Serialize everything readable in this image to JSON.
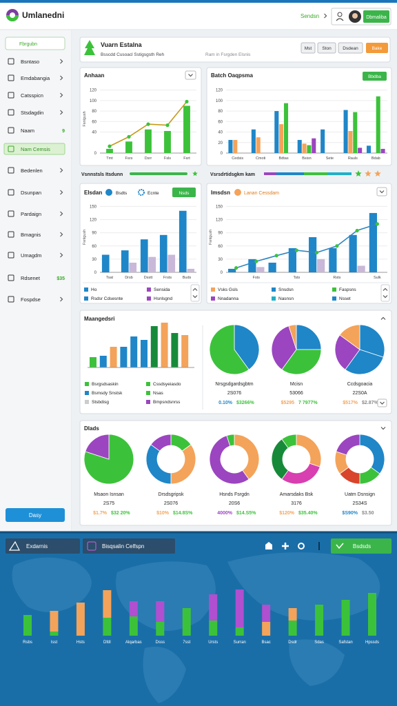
{
  "header": {
    "title": "Umlanedni",
    "link": "Sendsn",
    "user": "Dbmaliba"
  },
  "sidebar": {
    "search": "Fbrgubn",
    "items": [
      {
        "label": "Bsntaso"
      },
      {
        "label": "Emdabangia"
      },
      {
        "label": "Catsspicn"
      },
      {
        "label": "Stsdagdin"
      },
      {
        "label": "Naam",
        "badge": "9"
      },
      {
        "label": "Nam Cemsis",
        "active": true
      },
      {
        "label": "Bedenlen"
      },
      {
        "label": "Dsunpan"
      },
      {
        "label": "Pardaign"
      },
      {
        "label": "Bmagnis"
      },
      {
        "label": "Umagdm"
      },
      {
        "label": "Rdsenet",
        "badge": "$35"
      },
      {
        "label": "Fospdse"
      }
    ],
    "button": "Dasy"
  },
  "banner": {
    "title": "Vuarn Estalna",
    "subtitle": "Bsscdd Cusoacl Sstigsgsth Reh",
    "note": "Ram in Fsrgden Elsnis",
    "buttons": [
      "Mst",
      "Ston",
      "Dsdean",
      "Bake"
    ]
  },
  "panels": [
    {
      "title": "Anhaan",
      "chart": {
        "type": "bar",
        "ylabel": "Fsnlgush",
        "categories": [
          "Tmt",
          "Fsrs",
          "Dsrr",
          "Fsls",
          "Fsrt"
        ],
        "ylim": [
          0,
          130
        ],
        "yticks": [
          0,
          40,
          60,
          80,
          100,
          120
        ],
        "series": [
          {
            "color": "#3cc23a",
            "values": [
              8,
              22,
              45,
              42,
              90
            ]
          },
          {
            "kind": "line",
            "color": "#c49a1a",
            "marker": "#3cc23a",
            "values": [
              13,
              31,
              55,
              53,
              98
            ]
          }
        ]
      }
    },
    {
      "title": "Batch Oaqpsma",
      "button": "Bbdba",
      "chart": {
        "type": "bar",
        "categories": [
          "Cedsis",
          "Cmoti",
          "Bdtas",
          "Bsisn",
          "Sete",
          "Rauls",
          "Bdab"
        ],
        "ylim": [
          0,
          130
        ],
        "yticks": [
          0,
          20,
          40,
          60,
          80,
          100,
          120
        ],
        "series": [
          {
            "color": "#1f86c8",
            "values": [
              25,
              45,
              80,
              25,
              45,
              82,
              14
            ]
          },
          {
            "color": "#f4a35a",
            "values": [
              25,
              30,
              55,
              18,
              0,
              42,
              0
            ]
          },
          {
            "color": "#3cc23a",
            "values": [
              0,
              0,
              95,
              15,
              0,
              78,
              108
            ]
          },
          {
            "color": "#9b45c0",
            "values": [
              0,
              0,
              0,
              28,
              0,
              10,
              8
            ]
          }
        ]
      }
    },
    {
      "title": "Elsdan",
      "chips": [
        "Bsdts",
        "Ecnte"
      ],
      "button": "Nsds",
      "chart": {
        "type": "bar",
        "ylabel": "Fsnlgush",
        "categories": [
          "Tsat",
          "Drsb",
          "Dsstt",
          "Frsts",
          "Buds"
        ],
        "ylim": [
          0,
          160
        ],
        "yticks": [
          0,
          30,
          60,
          90,
          120,
          150
        ],
        "series": [
          {
            "color": "#1f86c8",
            "values": [
              40,
              50,
              75,
              85,
              140
            ]
          },
          {
            "color": "#c9b8d8",
            "values": [
              0,
              22,
              35,
              40,
              8
            ]
          }
        ]
      },
      "legend": [
        {
          "label": "Ho",
          "color": "#1f86c8"
        },
        {
          "label": "Sensida",
          "color": "#9b45c0"
        },
        {
          "label": "Rsdsr Cdsesnte",
          "color": "#1f86c8"
        },
        {
          "label": "Hsnlsgnd",
          "color": "#9b45c0"
        }
      ]
    },
    {
      "title": "Imsdsn",
      "subtitle": "Lanan Cessdam",
      "chart": {
        "type": "bar",
        "ylabel": "Fsnlgush",
        "categories": [
          null,
          "Fsts",
          null,
          "Tsts",
          null,
          "Rsts",
          null,
          "Sulk"
        ],
        "ylim": [
          0,
          160
        ],
        "yticks": [
          0,
          30,
          60,
          90,
          120,
          150
        ],
        "series": [
          {
            "color": "#1f86c8",
            "values": [
              8,
              30,
              22,
              55,
              80,
              55,
              85,
              135
            ]
          },
          {
            "color": "#c9b8d8",
            "values": [
              0,
              12,
              0,
              0,
              30,
              0,
              15,
              0
            ]
          },
          {
            "kind": "line",
            "color": "#2e86c1",
            "marker": "#3cc23a",
            "values": [
              10,
              25,
              38,
              50,
              45,
              60,
              95,
              110
            ]
          }
        ]
      },
      "legend": [
        {
          "label": "Vsks Gsls",
          "color": "#f4a35a"
        },
        {
          "label": "Snsdsn",
          "color": "#1f86c8"
        },
        {
          "label": "Faspsns",
          "color": "#3cc23a"
        },
        {
          "label": "Nnadanna",
          "color": "#9b45c0"
        },
        {
          "label": "Nasnsn",
          "color": "#1fb0c8"
        },
        {
          "label": "Nsset",
          "color": "#1f86c8"
        }
      ]
    }
  ],
  "strip": {
    "left": "Vsnnstsls Itsdunn",
    "right": "Vsrsdrtidsgkm kam"
  },
  "breakdown": {
    "title": "Maangedsri",
    "bars": {
      "values": [
        15,
        17,
        30,
        30,
        45,
        40,
        60,
        65,
        50,
        47
      ],
      "colors": [
        "#3cc23a",
        "#1f86c8",
        "#f4a35a",
        "#1f86c8",
        "#1f86c8",
        "#1f86c8",
        "#178a3a",
        "#f4a35a",
        "#178a3a",
        "#f4a35a"
      ]
    },
    "legend": [
      {
        "label": "Bsrgsdsaskin",
        "color": "#3cc23a"
      },
      {
        "label": "Cssdsyeiasdo",
        "color": "#3cc23a"
      },
      {
        "label": "Bsmsdy Snstsk",
        "color": "#1f86c8"
      },
      {
        "label": "Nsas",
        "color": "#3cc23a"
      },
      {
        "label": "Stsbdisg",
        "color": "#cccccc"
      },
      {
        "label": "Bmpsndsnrss",
        "color": "#9b45c0"
      }
    ],
    "pies": [
      {
        "title": "Nrsgsdgardsgbtm",
        "total": "2S076",
        "values": [
          40,
          60
        ],
        "colors": [
          "#1f86c8",
          "#3cc23a"
        ],
        "notes": [
          {
            "text": "0.10%",
            "color": "#1f86c8"
          },
          {
            "text": "$3266%",
            "color": "#3cc23a"
          }
        ]
      },
      {
        "title": "Mcisn",
        "total": "53066",
        "values": [
          25,
          35,
          35,
          5
        ],
        "colors": [
          "#1f86c8",
          "#3cc23a",
          "#9b45c0",
          "#f4a35a"
        ],
        "notes": [
          {
            "text": "$5295",
            "color": "#f4a35a"
          },
          {
            "text": "7 7977%",
            "color": "#3cc23a"
          }
        ]
      },
      {
        "title": "Ccdsgoacia",
        "total": "22S0A",
        "values": [
          30,
          30,
          25,
          15
        ],
        "colors": [
          "#1f86c8",
          "#1f86c8",
          "#9b45c0",
          "#f4a35a"
        ],
        "notes": [
          {
            "text": "$517%",
            "color": "#f4a35a"
          },
          {
            "text": "$2.87%",
            "color": "#888888"
          }
        ]
      }
    ]
  },
  "donuts": {
    "title": "Dlads",
    "items": [
      {
        "title": "Msaon Isnsan",
        "total": "2S75",
        "donut": false,
        "values": [
          80,
          20
        ],
        "colors": [
          "#3cc23a",
          "#9b45c0"
        ],
        "notes": [
          {
            "text": "$1.7%",
            "color": "#f4a35a"
          },
          {
            "text": "$32 20%",
            "color": "#3cc23a"
          }
        ]
      },
      {
        "title": "Drsdsgripsk",
        "total": "2S076",
        "donut": true,
        "values": [
          15,
          35,
          35,
          15
        ],
        "colors": [
          "#3cc23a",
          "#f4a35a",
          "#1f86c8",
          "#9b45c0"
        ],
        "notes": [
          {
            "text": "$10%",
            "color": "#f4a35a"
          },
          {
            "text": "$14.8S%",
            "color": "#3cc23a"
          }
        ]
      },
      {
        "title": "Hsnds Fsrgdn",
        "total": "20S6",
        "donut": true,
        "values": [
          40,
          55,
          5
        ],
        "colors": [
          "#f4a35a",
          "#9b45c0",
          "#3cc23a"
        ],
        "notes": [
          {
            "text": "4000%",
            "color": "#9b45c0"
          },
          {
            "text": "$14.S5%",
            "color": "#3cc23a"
          }
        ]
      },
      {
        "title": "Amarsdaks Bsk",
        "total": "3176",
        "donut": true,
        "values": [
          30,
          30,
          30,
          10
        ],
        "colors": [
          "#f4a35a",
          "#d83fb0",
          "#178a3a",
          "#3cc23a"
        ],
        "notes": [
          {
            "text": "$120%",
            "color": "#f4a35a"
          },
          {
            "text": "$35.40%",
            "color": "#3cc23a"
          }
        ]
      },
      {
        "title": "Uatm Dsnsign",
        "total": "2S34S",
        "donut": true,
        "values": [
          35,
          15,
          15,
          15,
          20
        ],
        "colors": [
          "#1f86c8",
          "#3cc23a",
          "#d8452a",
          "#f4a35a",
          "#9b45c0"
        ],
        "notes": [
          {
            "text": "$S90%",
            "color": "#1f86c8"
          },
          {
            "text": "$3.50",
            "color": "#888888"
          }
        ]
      }
    ]
  },
  "footer": {
    "tabs": [
      "Exdarnis",
      "Bisqsalin Celfspn"
    ],
    "button": "Bsdsds",
    "chart": {
      "type": "bar",
      "stacked": true,
      "categories": [
        "Rsbs",
        "Isst",
        "Hsts",
        "Dfdl",
        "Alqarbas",
        "Dsss",
        "7sst",
        "Ursts",
        "Surran",
        "Bsac",
        "Dsdr",
        "Sdas",
        "Safstan",
        "Hpssds"
      ],
      "series": [
        {
          "color": "#3cc23a",
          "values": [
            30,
            6,
            0,
            26,
            28,
            20,
            40,
            22,
            12,
            0,
            22,
            45,
            52,
            62
          ]
        },
        {
          "color": "#f4a35a",
          "values": [
            0,
            30,
            48,
            40,
            0,
            0,
            0,
            0,
            0,
            20,
            18,
            0,
            0,
            0
          ]
        },
        {
          "color": "#b04fd0",
          "values": [
            0,
            0,
            0,
            0,
            22,
            30,
            0,
            38,
            55,
            25,
            0,
            0,
            0,
            0
          ]
        }
      ]
    }
  }
}
